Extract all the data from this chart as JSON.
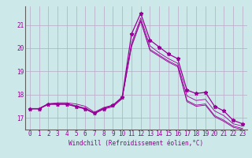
{
  "xlabel": "Windchill (Refroidissement éolien,°C)",
  "bg_color": "#cce8e8",
  "line_color": "#990099",
  "grid_color": "#b8a8c8",
  "series_main": [
    17.4,
    17.4,
    17.6,
    17.6,
    17.6,
    17.5,
    17.4,
    17.2,
    17.4,
    17.55,
    17.9,
    20.6,
    21.5,
    20.35,
    20.05,
    19.75,
    19.55,
    18.2,
    18.05,
    18.1,
    17.5,
    17.3,
    16.9,
    16.75
  ],
  "series_extra": [
    [
      17.4,
      17.4,
      17.6,
      17.65,
      17.65,
      17.6,
      17.5,
      17.25,
      17.45,
      17.55,
      17.85,
      20.2,
      21.3,
      20.1,
      19.8,
      19.55,
      19.35,
      17.95,
      17.75,
      17.8,
      17.3,
      17.1,
      16.75,
      16.65
    ],
    [
      17.4,
      17.4,
      17.62,
      17.62,
      17.62,
      17.52,
      17.42,
      17.22,
      17.42,
      17.52,
      17.87,
      20.1,
      21.2,
      19.95,
      19.7,
      19.45,
      19.25,
      17.75,
      17.55,
      17.6,
      17.1,
      16.9,
      16.65,
      16.55
    ],
    [
      17.38,
      17.38,
      17.58,
      17.58,
      17.58,
      17.48,
      17.38,
      17.18,
      17.38,
      17.48,
      17.83,
      20.05,
      21.15,
      19.9,
      19.65,
      19.4,
      19.2,
      17.7,
      17.5,
      17.55,
      17.05,
      16.85,
      16.6,
      16.5
    ]
  ],
  "hours": [
    0,
    1,
    2,
    3,
    4,
    5,
    6,
    7,
    8,
    9,
    10,
    11,
    12,
    13,
    14,
    15,
    16,
    17,
    18,
    19,
    20,
    21,
    22,
    23
  ],
  "ylim": [
    16.5,
    21.8
  ],
  "yticks": [
    17,
    18,
    19,
    20,
    21
  ],
  "xticks": [
    0,
    1,
    2,
    3,
    4,
    5,
    6,
    7,
    8,
    9,
    10,
    11,
    12,
    13,
    14,
    15,
    16,
    17,
    18,
    19,
    20,
    21,
    22,
    23
  ],
  "marker": "*",
  "marker_size": 3.5,
  "linewidth": 0.9,
  "font_color": "#990099",
  "tick_fontsize": 5.5,
  "label_fontsize": 5.5
}
